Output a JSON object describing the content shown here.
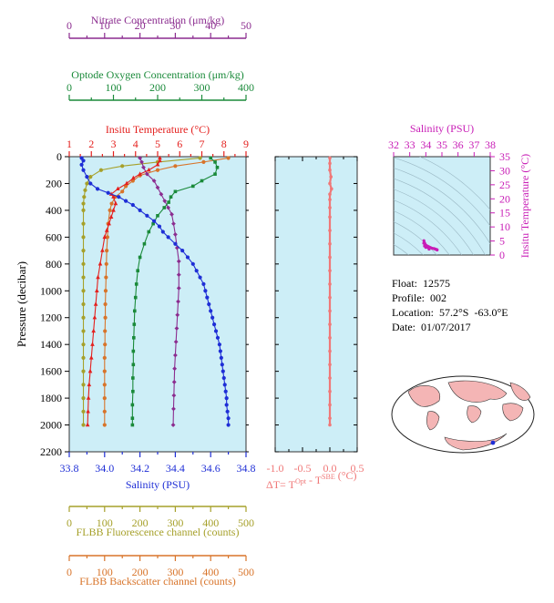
{
  "colors": {
    "nitrate": "#8B2C8F",
    "oxygen": "#1A8A3A",
    "temperature": "#E4201E",
    "salinity": "#1E2ED6",
    "fluorescence": "#A6A02A",
    "backscatter": "#D8742A",
    "delta": "#F07878",
    "ts_axis": "#C81DB6",
    "panel_fill": "#CDEEF7",
    "land": "#F4B5B5"
  },
  "float_info": {
    "float_line": "Float:  12575",
    "profile_line": "Profile:  002",
    "location_line": "Location:  57.2°S  -63.0°E",
    "date_line": "Date:  01/07/2017"
  },
  "chart_data": [
    {
      "type": "line",
      "id": "main-profile",
      "ylabel": "Pressure (decibar)",
      "yticks": [
        "0",
        "200",
        "400",
        "600",
        "800",
        "1000",
        "1200",
        "1400",
        "1600",
        "1800",
        "2000",
        "2200"
      ],
      "ylim": [
        0,
        2200
      ],
      "y_inverted": true,
      "axes": [
        {
          "key": "nitrate",
          "title": "Nitrate Concentration (μm/kg)",
          "ticks": [
            "0",
            "10",
            "20",
            "30",
            "40",
            "50"
          ],
          "lim": [
            0,
            50
          ]
        },
        {
          "key": "oxygen",
          "title": "Optode Oxygen Concentration (μm/kg)",
          "ticks": [
            "0",
            "100",
            "200",
            "300",
            "400"
          ],
          "lim": [
            0,
            400
          ]
        },
        {
          "key": "temperature",
          "title": "Insitu Temperature (°C)",
          "ticks": [
            "1",
            "2",
            "3",
            "4",
            "5",
            "6",
            "7",
            "8",
            "9"
          ],
          "lim": [
            1,
            9
          ]
        },
        {
          "key": "salinity",
          "title": "Salinity (PSU)",
          "ticks": [
            "33.8",
            "34.0",
            "34.2",
            "34.4",
            "34.6",
            "34.8"
          ],
          "lim": [
            33.8,
            34.8
          ]
        },
        {
          "key": "fluorescence",
          "title": "FLBB Fluorescence channel (counts)",
          "ticks": [
            "0",
            "100",
            "200",
            "300",
            "400",
            "500"
          ],
          "lim": [
            0,
            500
          ]
        },
        {
          "key": "backscatter",
          "title": "FLBB Backscatter channel (counts)",
          "ticks": [
            "0",
            "100",
            "200",
            "300",
            "400",
            "500"
          ],
          "lim": [
            0,
            500
          ]
        }
      ],
      "series": [
        {
          "key": "salinity",
          "marker": "circle",
          "points": [
            [
              33.87,
              10
            ],
            [
              33.88,
              30
            ],
            [
              33.87,
              60
            ],
            [
              33.88,
              100
            ],
            [
              33.9,
              150
            ],
            [
              33.92,
              200
            ],
            [
              33.96,
              240
            ],
            [
              34.02,
              270
            ],
            [
              34.08,
              300
            ],
            [
              34.12,
              330
            ],
            [
              34.16,
              360
            ],
            [
              34.2,
              400
            ],
            [
              34.24,
              440
            ],
            [
              34.28,
              480
            ],
            [
              34.31,
              520
            ],
            [
              34.33,
              560
            ],
            [
              34.36,
              600
            ],
            [
              34.4,
              650
            ],
            [
              34.44,
              700
            ],
            [
              34.47,
              750
            ],
            [
              34.5,
              800
            ],
            [
              34.52,
              850
            ],
            [
              34.54,
              900
            ],
            [
              34.56,
              950
            ],
            [
              34.57,
              1000
            ],
            [
              34.58,
              1050
            ],
            [
              34.59,
              1100
            ],
            [
              34.6,
              1150
            ],
            [
              34.61,
              1200
            ],
            [
              34.62,
              1250
            ],
            [
              34.63,
              1300
            ],
            [
              34.64,
              1350
            ],
            [
              34.65,
              1400
            ],
            [
              34.655,
              1450
            ],
            [
              34.66,
              1500
            ],
            [
              34.665,
              1550
            ],
            [
              34.67,
              1600
            ],
            [
              34.675,
              1650
            ],
            [
              34.68,
              1700
            ],
            [
              34.685,
              1750
            ],
            [
              34.69,
              1800
            ],
            [
              34.69,
              1850
            ],
            [
              34.695,
              1900
            ],
            [
              34.7,
              1950
            ],
            [
              34.7,
              2000
            ]
          ]
        },
        {
          "key": "temperature",
          "marker": "triangle",
          "points": [
            [
              5.1,
              10
            ],
            [
              5.1,
              30
            ],
            [
              5,
              60
            ],
            [
              4.6,
              100
            ],
            [
              4.2,
              130
            ],
            [
              3.9,
              160
            ],
            [
              3.6,
              200
            ],
            [
              3.2,
              240
            ],
            [
              2.9,
              280
            ],
            [
              3,
              300
            ],
            [
              3.1,
              350
            ],
            [
              3,
              400
            ],
            [
              2.9,
              450
            ],
            [
              2.8,
              500
            ],
            [
              2.7,
              550
            ],
            [
              2.6,
              600
            ],
            [
              2.5,
              700
            ],
            [
              2.4,
              800
            ],
            [
              2.3,
              900
            ],
            [
              2.25,
              1000
            ],
            [
              2.2,
              1100
            ],
            [
              2.15,
              1200
            ],
            [
              2.1,
              1300
            ],
            [
              2.05,
              1400
            ],
            [
              2.0,
              1500
            ],
            [
              1.95,
              1600
            ],
            [
              1.9,
              1700
            ],
            [
              1.87,
              1800
            ],
            [
              1.85,
              1900
            ],
            [
              1.83,
              2000
            ]
          ]
        },
        {
          "key": "oxygen",
          "marker": "square",
          "points": [
            [
              320,
              10
            ],
            [
              330,
              40
            ],
            [
              335,
              80
            ],
            [
              330,
              130
            ],
            [
              300,
              180
            ],
            [
              280,
              220
            ],
            [
              240,
              260
            ],
            [
              230,
              300
            ],
            [
              225,
              340
            ],
            [
              215,
              380
            ],
            [
              200,
              440
            ],
            [
              190,
              500
            ],
            [
              180,
              560
            ],
            [
              170,
              650
            ],
            [
              160,
              750
            ],
            [
              155,
              850
            ],
            [
              152,
              950
            ],
            [
              150,
              1050
            ],
            [
              148,
              1150
            ],
            [
              147,
              1250
            ],
            [
              146,
              1350
            ],
            [
              145,
              1450
            ],
            [
              145,
              1550
            ],
            [
              144,
              1650
            ],
            [
              144,
              1750
            ],
            [
              143,
              1850
            ],
            [
              143,
              1950
            ],
            [
              143,
              2000
            ]
          ]
        },
        {
          "key": "nitrate",
          "marker": "diamond",
          "points": [
            [
              20,
              10
            ],
            [
              20.5,
              40
            ],
            [
              21,
              80
            ],
            [
              22,
              130
            ],
            [
              24,
              180
            ],
            [
              25,
              230
            ],
            [
              26,
              280
            ],
            [
              27,
              330
            ],
            [
              28,
              380
            ],
            [
              29,
              430
            ],
            [
              29.5,
              500
            ],
            [
              30,
              580
            ],
            [
              30.5,
              680
            ],
            [
              31,
              780
            ],
            [
              31,
              880
            ],
            [
              31,
              980
            ],
            [
              30.8,
              1080
            ],
            [
              30.6,
              1180
            ],
            [
              30.4,
              1280
            ],
            [
              30.2,
              1380
            ],
            [
              30,
              1480
            ],
            [
              29.8,
              1580
            ],
            [
              29.7,
              1680
            ],
            [
              29.6,
              1780
            ],
            [
              29.5,
              1880
            ],
            [
              29.4,
              2000
            ]
          ]
        },
        {
          "key": "fluorescence",
          "marker": "circle",
          "points": [
            [
              370,
              10
            ],
            [
              250,
              40
            ],
            [
              150,
              70
            ],
            [
              90,
              100
            ],
            [
              60,
              150
            ],
            [
              50,
              200
            ],
            [
              45,
              250
            ],
            [
              42,
              300
            ],
            [
              40,
              350
            ],
            [
              40,
              400
            ],
            [
              40,
              500
            ],
            [
              40,
              600
            ],
            [
              40,
              700
            ],
            [
              40,
              800
            ],
            [
              40,
              900
            ],
            [
              40,
              1000
            ],
            [
              40,
              1100
            ],
            [
              40,
              1200
            ],
            [
              40,
              1300
            ],
            [
              40,
              1400
            ],
            [
              40,
              1500
            ],
            [
              40,
              1600
            ],
            [
              40,
              1700
            ],
            [
              40,
              1800
            ],
            [
              40,
              1900
            ],
            [
              40,
              2000
            ]
          ]
        },
        {
          "key": "backscatter",
          "marker": "circle",
          "points": [
            [
              450,
              10
            ],
            [
              380,
              40
            ],
            [
              300,
              70
            ],
            [
              250,
              100
            ],
            [
              200,
              140
            ],
            [
              180,
              180
            ],
            [
              160,
              220
            ],
            [
              150,
              260
            ],
            [
              130,
              300
            ],
            [
              120,
              350
            ],
            [
              115,
              400
            ],
            [
              110,
              500
            ],
            [
              108,
              600
            ],
            [
              106,
              700
            ],
            [
              105,
              800
            ],
            [
              104,
              900
            ],
            [
              103,
              1000
            ],
            [
              102,
              1100
            ],
            [
              102,
              1200
            ],
            [
              101,
              1300
            ],
            [
              101,
              1400
            ],
            [
              100,
              1500
            ],
            [
              100,
              1600
            ],
            [
              100,
              1700
            ],
            [
              100,
              1800
            ],
            [
              100,
              1900
            ],
            [
              100,
              2000
            ]
          ]
        }
      ]
    },
    {
      "type": "line",
      "id": "delta-t",
      "xlabel": "ΔT= T",
      "xlabel_sup1": "Opt",
      "xlabel_mid": " - T",
      "xlabel_sup2": "SBE",
      "xlabel_end": " (°C)",
      "xticks": [
        "-1.0",
        "-0.5",
        "0.0",
        "0.5"
      ],
      "xlim": [
        -1.0,
        0.5
      ],
      "ylim": [
        0,
        2200
      ],
      "series": [
        {
          "key": "delta",
          "points": [
            [
              0.0,
              10
            ],
            [
              0.0,
              50
            ],
            [
              0.0,
              100
            ],
            [
              0.02,
              150
            ],
            [
              0.0,
              200
            ],
            [
              0.03,
              240
            ],
            [
              0.0,
              280
            ],
            [
              0.0,
              320
            ],
            [
              0.0,
              380
            ],
            [
              0.0,
              450
            ],
            [
              0.0,
              550
            ],
            [
              0.0,
              650
            ],
            [
              0.0,
              750
            ],
            [
              0.0,
              850
            ],
            [
              0.0,
              950
            ],
            [
              0.0,
              1050
            ],
            [
              0.0,
              1150
            ],
            [
              0.0,
              1250
            ],
            [
              0.0,
              1350
            ],
            [
              0.0,
              1450
            ],
            [
              0.0,
              1550
            ],
            [
              0.0,
              1650
            ],
            [
              0.0,
              1750
            ],
            [
              0.0,
              1850
            ],
            [
              0.0,
              1950
            ],
            [
              0.0,
              2000
            ]
          ]
        }
      ]
    },
    {
      "type": "scatter",
      "id": "ts-diagram",
      "title": "Salinity (PSU)",
      "ylabel": "Insitu Temperature (°C)",
      "xticks": [
        "32",
        "33",
        "34",
        "35",
        "36",
        "37",
        "38"
      ],
      "xlim": [
        32,
        38
      ],
      "yticks": [
        "0",
        "5",
        "10",
        "15",
        "20",
        "25",
        "30",
        "35"
      ],
      "ylim": [
        0,
        35
      ],
      "points": [
        [
          33.88,
          5.1
        ],
        [
          33.9,
          4.6
        ],
        [
          33.95,
          4
        ],
        [
          34.0,
          3.5
        ],
        [
          34.1,
          3
        ],
        [
          34.2,
          2.8
        ],
        [
          34.3,
          2.6
        ],
        [
          34.4,
          2.4
        ],
        [
          34.5,
          2.3
        ],
        [
          34.55,
          2.2
        ],
        [
          34.6,
          2.1
        ],
        [
          34.65,
          2.0
        ],
        [
          34.7,
          1.9
        ],
        [
          34.7,
          1.8
        ],
        [
          33.87,
          4.2
        ],
        [
          33.92,
          3.2
        ],
        [
          34.0,
          2.7
        ],
        [
          34.2,
          2.1
        ]
      ]
    }
  ]
}
